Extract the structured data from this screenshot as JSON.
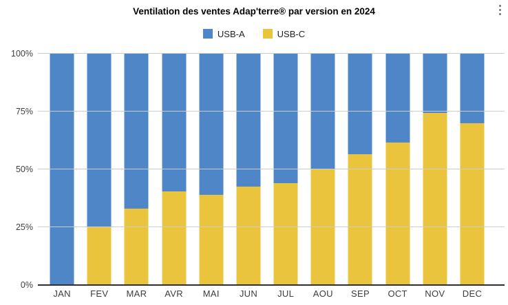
{
  "header": {
    "title": "Ventilation des ventes Adap'terre® par version en 2024",
    "menu_icon": "kebab-menu"
  },
  "chart_data": {
    "type": "bar",
    "stacked": true,
    "stack_mode": "percent",
    "title": "Ventilation des ventes Adap'terre® par version en 2024",
    "categories": [
      "JAN",
      "FEV",
      "MAR",
      "AVR",
      "MAI",
      "JUN",
      "JUL",
      "AOU",
      "SEP",
      "OCT",
      "NOV",
      "DEC"
    ],
    "series": [
      {
        "name": "USB-A",
        "color": "#4E86C8",
        "values": [
          100,
          75,
          67,
          59.5,
          61,
          57.5,
          56,
          50,
          43.5,
          38.5,
          25.5,
          30
        ]
      },
      {
        "name": "USB-C",
        "color": "#EAC43D",
        "values": [
          0,
          25,
          33,
          40.5,
          39,
          42.5,
          44,
          50,
          56.5,
          61.5,
          74.5,
          70
        ]
      }
    ],
    "xlabel": "",
    "ylabel": "",
    "ylim": [
      0,
      100
    ],
    "y_ticks": [
      {
        "label": "0%",
        "value": 0
      },
      {
        "label": "25%",
        "value": 25
      },
      {
        "label": "50%",
        "value": 50
      },
      {
        "label": "75%",
        "value": 75
      },
      {
        "label": "100%",
        "value": 100
      }
    ],
    "grid": true,
    "legend_position": "top",
    "colors": {
      "grid": "#cccccc",
      "axis": "#2e2e2e",
      "tick_text": "#404040",
      "title_text": "#000000"
    }
  }
}
